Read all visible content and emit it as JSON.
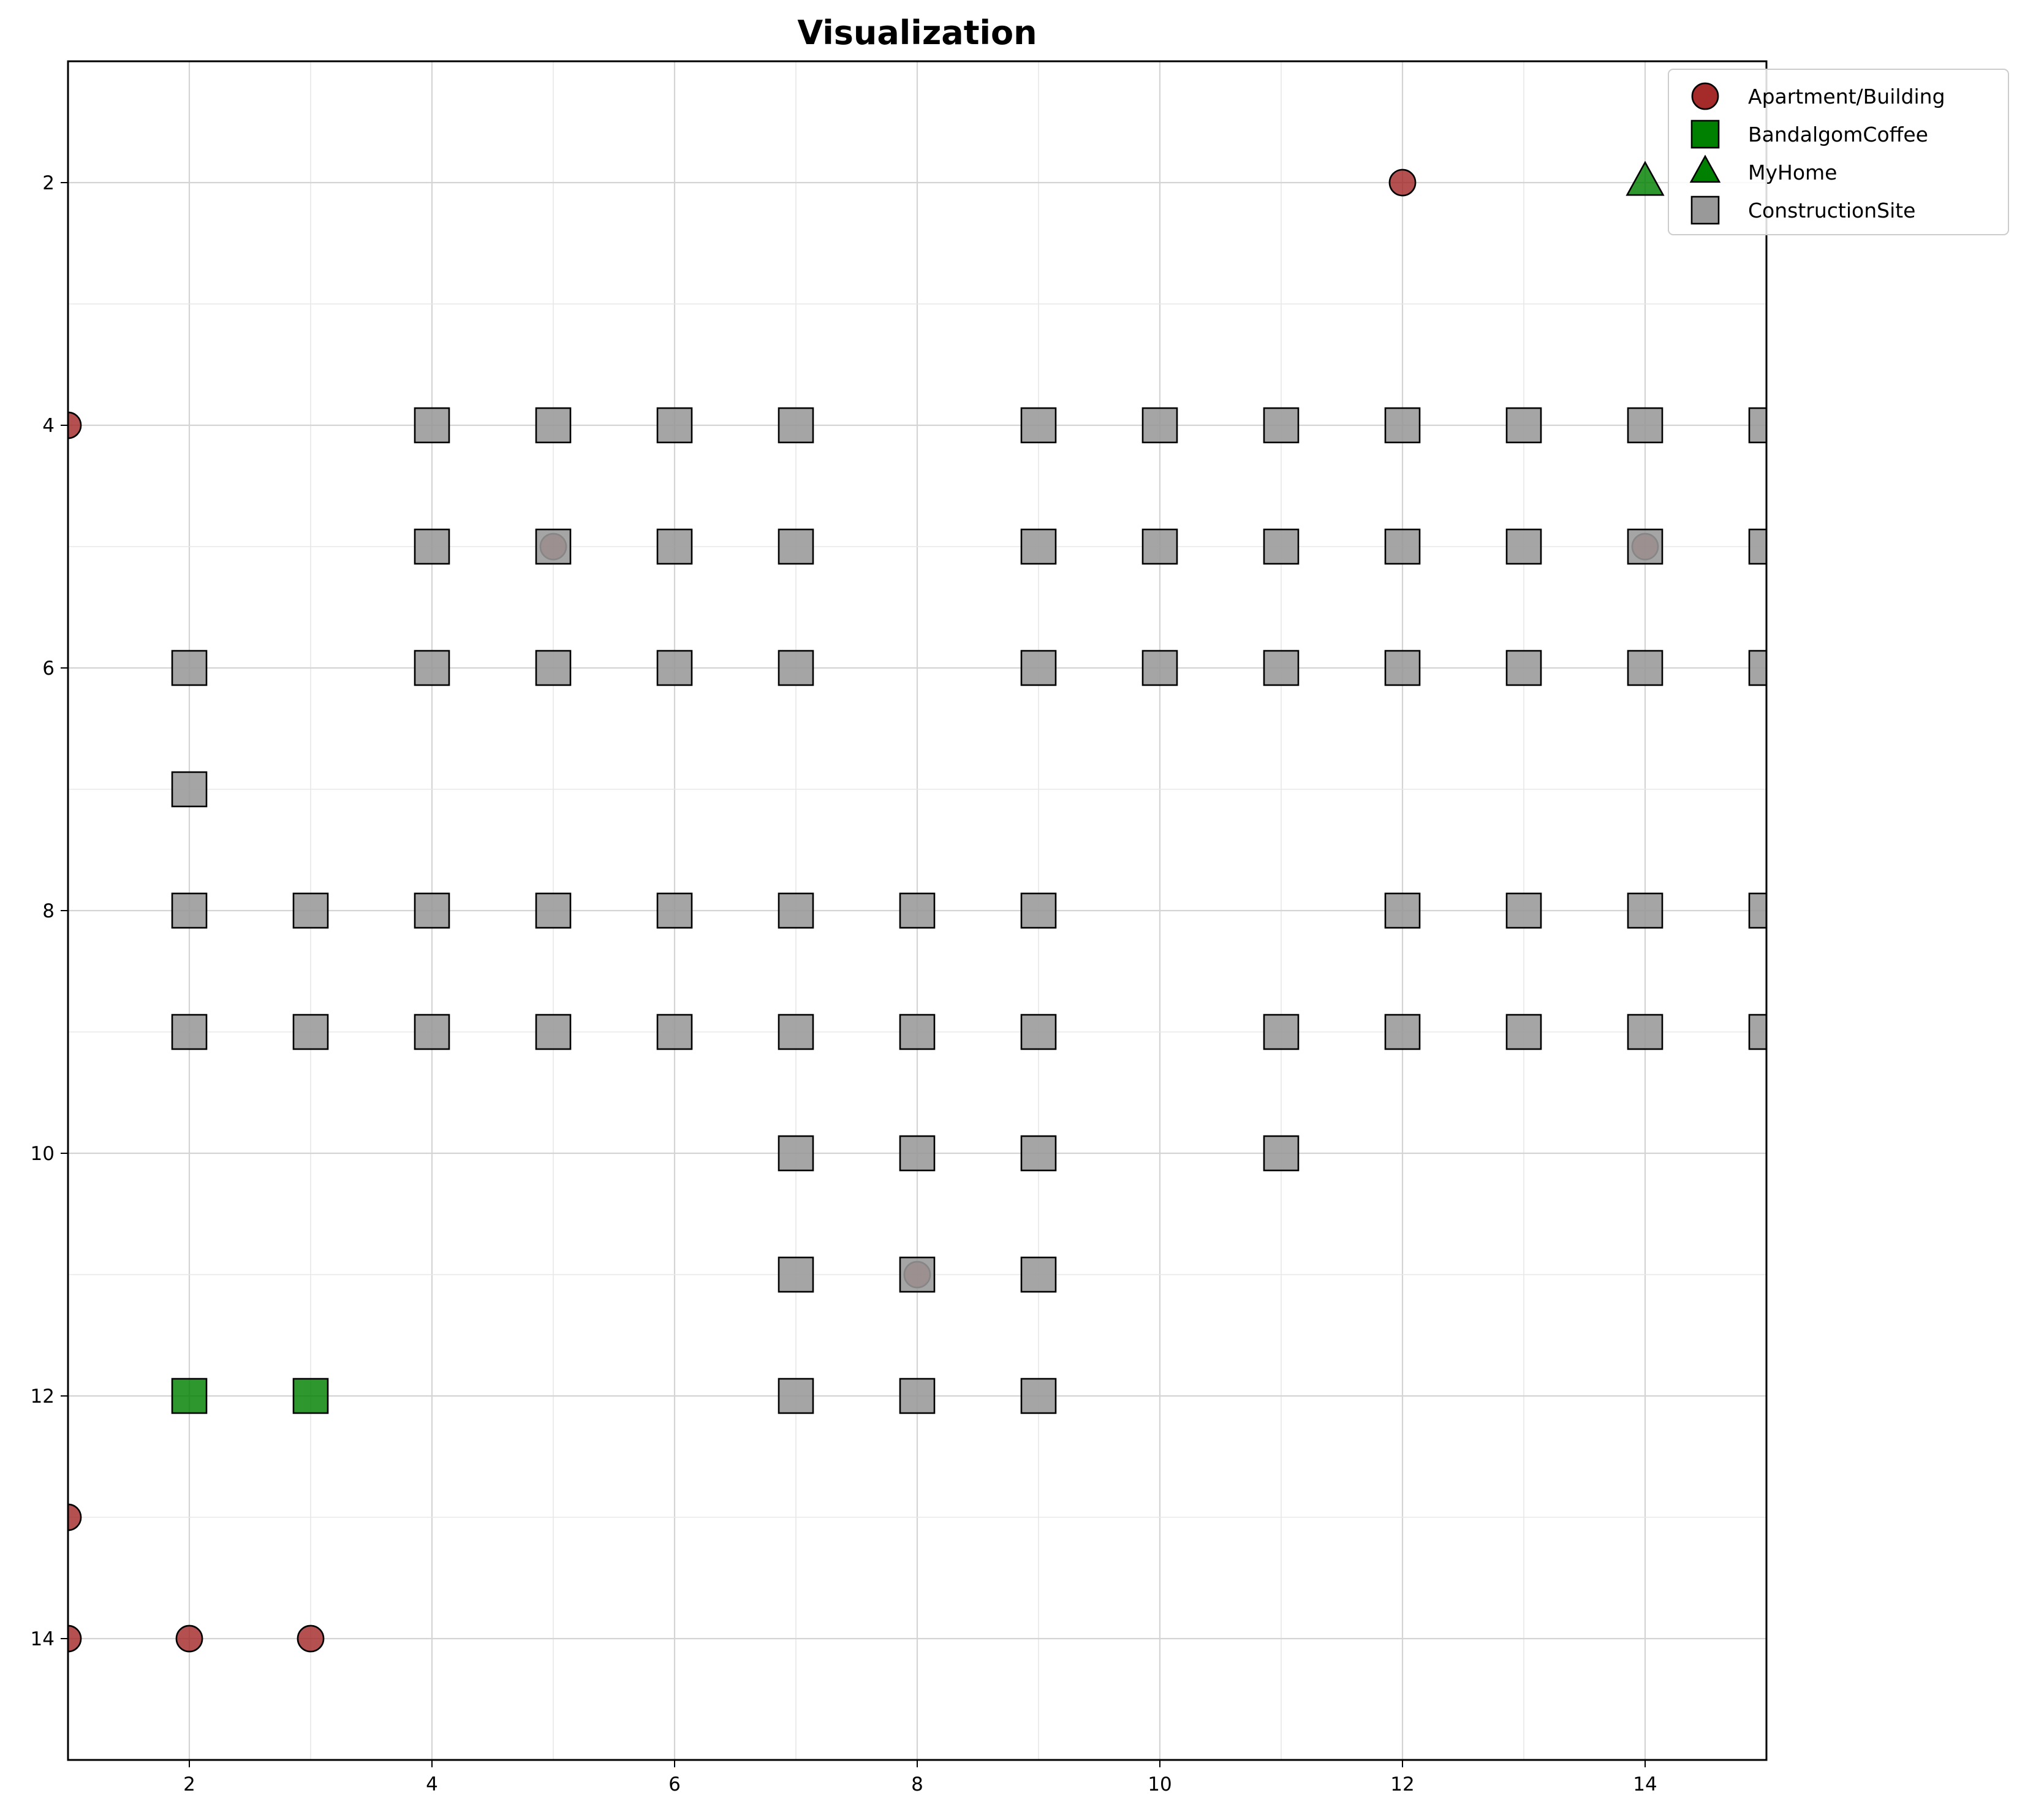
{
  "chart_data": {
    "type": "scatter",
    "title": "Visualization",
    "xlabel": "",
    "ylabel": "",
    "xlim": [
      1,
      15
    ],
    "ylim": [
      15,
      1
    ],
    "y_inverted": true,
    "grid": true,
    "legend_position": "top-right",
    "x_ticks": [
      "2",
      "4",
      "6",
      "8",
      "10",
      "12",
      "14"
    ],
    "y_ticks": [
      "2",
      "4",
      "6",
      "8",
      "10",
      "12",
      "14"
    ],
    "series": [
      {
        "name": "Apartment/Building",
        "marker": "circle",
        "color": "#a52a2a",
        "points": [
          [
            12,
            2
          ],
          [
            1,
            4
          ],
          [
            5,
            5
          ],
          [
            14,
            5
          ],
          [
            8,
            11
          ],
          [
            1,
            13
          ],
          [
            1,
            14
          ],
          [
            2,
            14
          ],
          [
            3,
            14
          ]
        ]
      },
      {
        "name": "BandalgomCoffee",
        "marker": "square",
        "color": "#008000",
        "points": [
          [
            2,
            12
          ],
          [
            3,
            12
          ]
        ]
      },
      {
        "name": "MyHome",
        "marker": "triangle",
        "color": "#008000",
        "points": [
          [
            14,
            2
          ]
        ]
      },
      {
        "name": "ConstructionSite",
        "marker": "square",
        "color": "#999999",
        "points": [
          [
            4,
            4
          ],
          [
            5,
            4
          ],
          [
            6,
            4
          ],
          [
            7,
            4
          ],
          [
            9,
            4
          ],
          [
            10,
            4
          ],
          [
            11,
            4
          ],
          [
            12,
            4
          ],
          [
            13,
            4
          ],
          [
            14,
            4
          ],
          [
            15,
            4
          ],
          [
            4,
            5
          ],
          [
            5,
            5
          ],
          [
            6,
            5
          ],
          [
            7,
            5
          ],
          [
            9,
            5
          ],
          [
            10,
            5
          ],
          [
            11,
            5
          ],
          [
            12,
            5
          ],
          [
            13,
            5
          ],
          [
            14,
            5
          ],
          [
            15,
            5
          ],
          [
            2,
            6
          ],
          [
            4,
            6
          ],
          [
            5,
            6
          ],
          [
            6,
            6
          ],
          [
            7,
            6
          ],
          [
            9,
            6
          ],
          [
            10,
            6
          ],
          [
            11,
            6
          ],
          [
            12,
            6
          ],
          [
            13,
            6
          ],
          [
            14,
            6
          ],
          [
            15,
            6
          ],
          [
            2,
            7
          ],
          [
            2,
            8
          ],
          [
            3,
            8
          ],
          [
            4,
            8
          ],
          [
            5,
            8
          ],
          [
            6,
            8
          ],
          [
            7,
            8
          ],
          [
            8,
            8
          ],
          [
            9,
            8
          ],
          [
            12,
            8
          ],
          [
            13,
            8
          ],
          [
            14,
            8
          ],
          [
            15,
            8
          ],
          [
            2,
            9
          ],
          [
            3,
            9
          ],
          [
            4,
            9
          ],
          [
            5,
            9
          ],
          [
            6,
            9
          ],
          [
            7,
            9
          ],
          [
            8,
            9
          ],
          [
            9,
            9
          ],
          [
            11,
            9
          ],
          [
            12,
            9
          ],
          [
            13,
            9
          ],
          [
            14,
            9
          ],
          [
            15,
            9
          ],
          [
            7,
            10
          ],
          [
            8,
            10
          ],
          [
            9,
            10
          ],
          [
            11,
            10
          ],
          [
            7,
            11
          ],
          [
            8,
            11
          ],
          [
            9,
            11
          ],
          [
            7,
            12
          ],
          [
            8,
            12
          ],
          [
            9,
            12
          ]
        ]
      }
    ],
    "draw_order": [
      "BandalgomCoffee",
      "MyHome",
      "Apartment/Building",
      "ConstructionSite"
    ]
  }
}
